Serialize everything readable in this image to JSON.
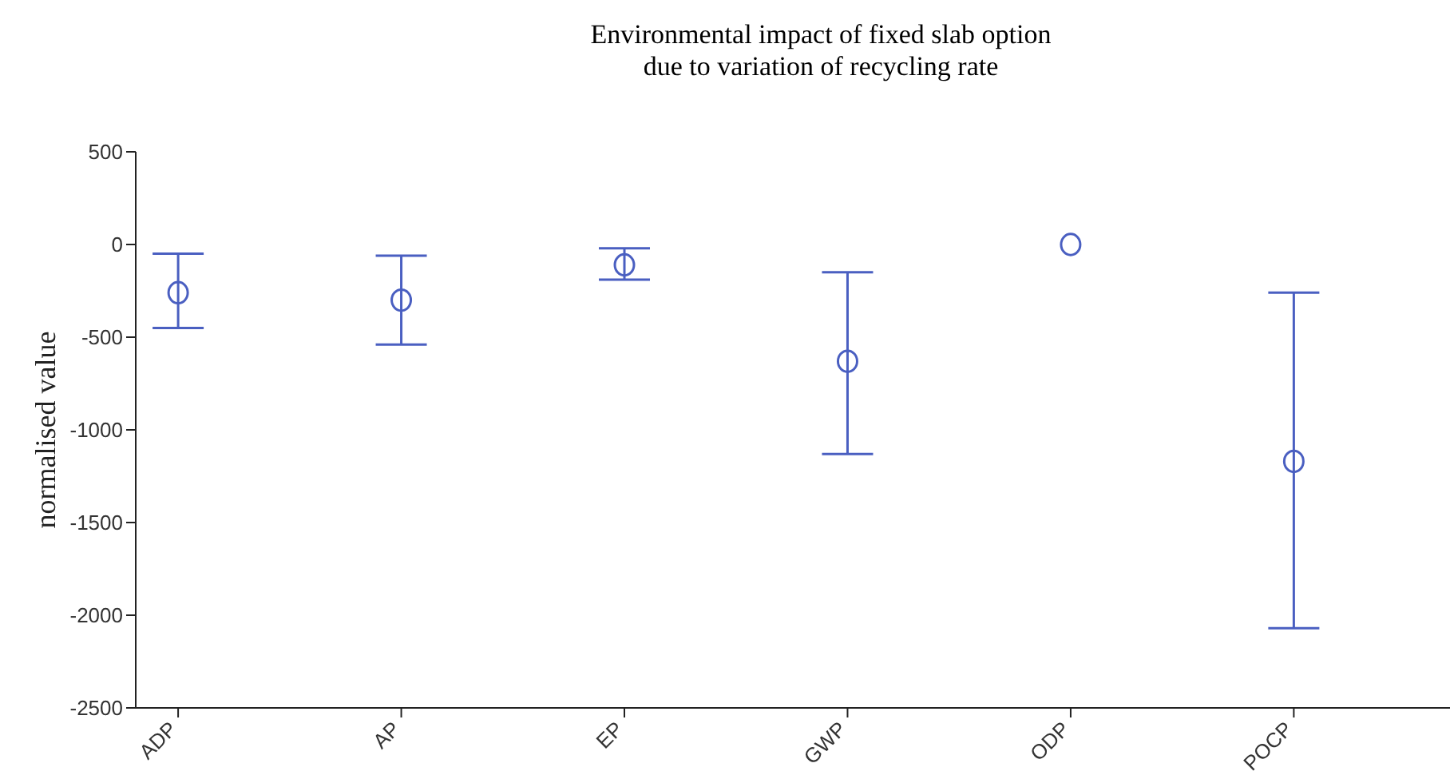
{
  "chart_data": {
    "type": "scatter",
    "title": "Environmental impact of fixed slab option\ndue to variation of recycling rate",
    "ylabel": "normalised value",
    "categories": [
      "ADP",
      "AP",
      "EP",
      "GWP",
      "ODP",
      "POCP"
    ],
    "series": [
      {
        "color": "#4a5fc1",
        "values": [
          -260,
          -300,
          -110,
          -630,
          0,
          -1170
        ],
        "errors": [
          [
            -450,
            -50
          ],
          [
            -540,
            -60
          ],
          [
            -190,
            -20
          ],
          [
            -1130,
            -150
          ],
          null,
          [
            -2070,
            -260
          ]
        ]
      }
    ],
    "ylim": [
      -2500,
      500
    ],
    "yticks": [
      -2500,
      -2000,
      -1500,
      -1000,
      -500,
      0,
      500
    ],
    "grid": false,
    "legend": false,
    "marker": "circle"
  }
}
